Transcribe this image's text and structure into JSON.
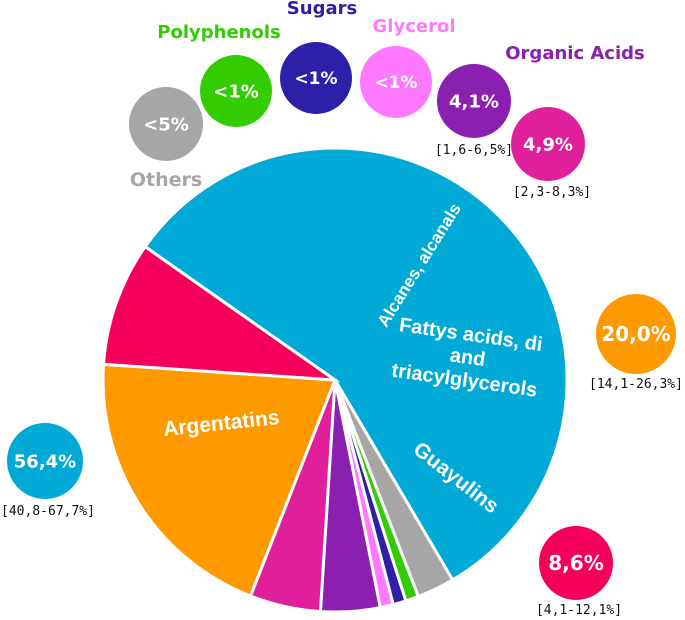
{
  "chart_data": {
    "type": "pie",
    "slices": [
      {
        "key": "argentatins",
        "label": "Argentatins",
        "value": 56.4,
        "display": "56,4%",
        "range": "[40,8-67,7%]",
        "color": "#00a9d6"
      },
      {
        "key": "others",
        "label": "Others",
        "value": 2.6,
        "display": "<5%",
        "range": "",
        "color": "#a6a6a6"
      },
      {
        "key": "polyphenols",
        "label": "Polyphenols",
        "value": 0.9,
        "display": "<1%",
        "range": "",
        "color": "#33cc00"
      },
      {
        "key": "sugars",
        "label": "Sugars",
        "value": 0.9,
        "display": "<1%",
        "range": "",
        "color": "#2e1fa8"
      },
      {
        "key": "glycerol",
        "label": "Glycerol",
        "value": 0.9,
        "display": "<1%",
        "range": "",
        "color": "#ff79ff"
      },
      {
        "key": "organic_acids",
        "label": "Organic Acids",
        "value": 4.1,
        "display": "4,1%",
        "range": "[1,6-6,5%]",
        "color": "#8a1fb0"
      },
      {
        "key": "alcanes",
        "label": "Alcanes, alcanals",
        "value": 4.9,
        "display": "4,9%",
        "range": "[2,3-8,3%]",
        "color": "#e0209a"
      },
      {
        "key": "fatty_acids",
        "label": "Fattys acids, di and triacylglycerols",
        "value": 20.0,
        "display": "20,0%",
        "range": "[14,1-26,3%]",
        "color": "#ff9900"
      },
      {
        "key": "guayulins",
        "label": "Guayulins",
        "value": 8.6,
        "display": "8,6%",
        "range": "[4,1-12,1%]",
        "color": "#f5005a"
      }
    ]
  }
}
